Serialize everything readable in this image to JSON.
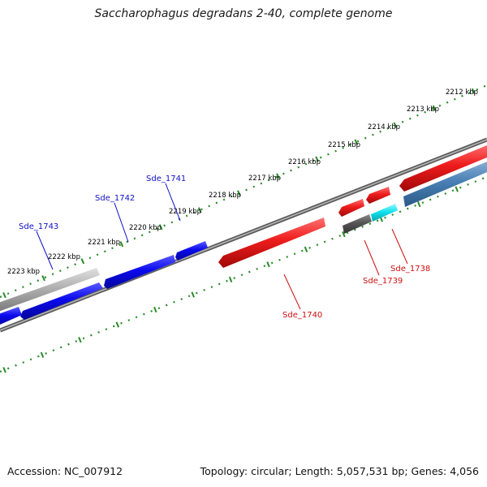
{
  "title": "Saccharophagus degradans 2-40, complete genome",
  "footer": {
    "accession": "Accession: NC_007912",
    "summary": "Topology: circular; Length: 5,057,531 bp; Genes: 4,056"
  },
  "colors": {
    "backbone": "#787878",
    "ruler": "#2a8a2a",
    "forward_blue": "#0a0aee",
    "grey_gene": "#a8a8a8",
    "steel_blue": "#4a80b4",
    "reverse_red": "#ee1c1c",
    "dark_grey": "#555555",
    "cyan": "#12e2ee",
    "label_blue": "#1010c8",
    "label_red": "#cc1010"
  },
  "ruler_labels": [
    "2212 kbp",
    "2213 kbp",
    "2214 kbp",
    "2215 kbp",
    "2216 kbp",
    "2217 kbp",
    "2218 kbp",
    "2219 kbp",
    "2220 kbp",
    "2221 kbp",
    "2222 kbp",
    "2223 kbp"
  ],
  "gene_labels": {
    "forward": [
      "Sde_1743",
      "Sde_1742",
      "Sde_1741"
    ],
    "reverse": [
      "Sde_1740",
      "Sde_1739",
      "Sde_1738"
    ]
  }
}
